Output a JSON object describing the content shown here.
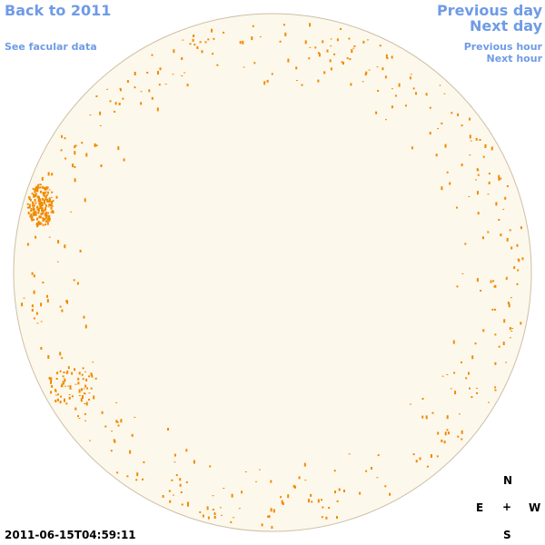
{
  "nav": {
    "back": "Back to 2011",
    "facular": "See facular data",
    "previous_day": "Previous day",
    "next_day": "Next day",
    "previous_hour": "Previous hour",
    "next_hour": "Next hour"
  },
  "timestamp": "2011-06-15T04:59:11",
  "compass": {
    "north": "N",
    "east": "E",
    "center": "+",
    "west": "W",
    "south": "S"
  }
}
